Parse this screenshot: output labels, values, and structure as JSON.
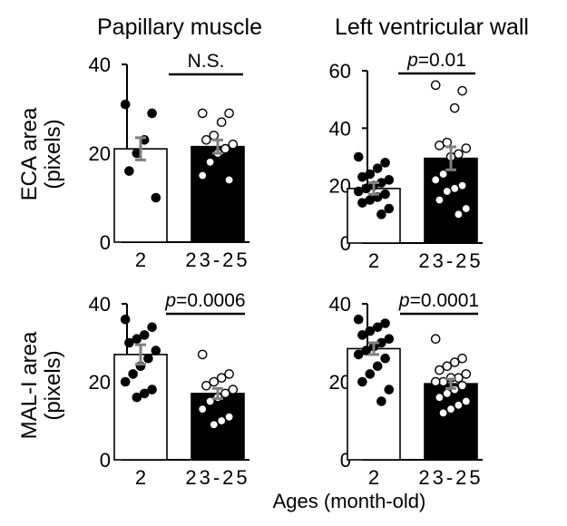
{
  "column_titles": [
    "Papillary muscle",
    "Left ventricular wall"
  ],
  "row_labels": [
    {
      "line1": "ECA area",
      "line2": "(pixels)"
    },
    {
      "line1": "MAL-I area",
      "line2": "(pixels)"
    }
  ],
  "xlabel": "Ages (month-old)",
  "chart_data": [
    {
      "type": "bar",
      "panel": "ECA area, Papillary muscle",
      "categories": [
        "2",
        "23-25"
      ],
      "ylim": [
        0,
        40
      ],
      "yticks": [
        0,
        20,
        40
      ],
      "significance": {
        "label_prefix": "",
        "label_value": "N.S."
      },
      "series": [
        {
          "group": "2",
          "mean": 21,
          "sem": 2.5,
          "bar_color": "#ffffff",
          "points": [
            31,
            29,
            23,
            20,
            16,
            10
          ]
        },
        {
          "group": "23-25",
          "mean": 21.5,
          "sem": 1.5,
          "bar_color": "#000000",
          "points": [
            29,
            29,
            27,
            24,
            23,
            22,
            21,
            20,
            18,
            15,
            14
          ]
        }
      ]
    },
    {
      "type": "bar",
      "panel": "ECA area, Left ventricular wall",
      "categories": [
        "2",
        "23-25"
      ],
      "ylim": [
        0,
        60
      ],
      "yticks": [
        0,
        20,
        40,
        60
      ],
      "significance": {
        "label_prefix": "p",
        "label_value": "=0.01"
      },
      "series": [
        {
          "group": "2",
          "mean": 19,
          "sem": 2,
          "bar_color": "#ffffff",
          "points": [
            30,
            28,
            26,
            24,
            23,
            22,
            21,
            20,
            19,
            18,
            17,
            16,
            15,
            14,
            12,
            10
          ]
        },
        {
          "group": "23-25",
          "mean": 29.5,
          "sem": 4,
          "bar_color": "#000000",
          "points": [
            55,
            53,
            47,
            35,
            34,
            33,
            31,
            30,
            24,
            22,
            20,
            19,
            18,
            15,
            12,
            10
          ]
        }
      ]
    },
    {
      "type": "bar",
      "panel": "MAL-I area, Papillary muscle",
      "categories": [
        "2",
        "23-25"
      ],
      "ylim": [
        0,
        40
      ],
      "yticks": [
        0,
        20,
        40
      ],
      "significance": {
        "label_prefix": "p",
        "label_value": "=0.0006"
      },
      "series": [
        {
          "group": "2",
          "mean": 27,
          "sem": 2.5,
          "bar_color": "#ffffff",
          "points": [
            36,
            34,
            32,
            31,
            30,
            28,
            26,
            24,
            22,
            20,
            18,
            17,
            16
          ]
        },
        {
          "group": "23-25",
          "mean": 17,
          "sem": 1.3,
          "bar_color": "#000000",
          "points": [
            27,
            22,
            21,
            20,
            19,
            18,
            17,
            16,
            15,
            13,
            11,
            10,
            9
          ]
        }
      ]
    },
    {
      "type": "bar",
      "panel": "MAL-I area, Left ventricular wall",
      "categories": [
        "2",
        "23-25"
      ],
      "ylim": [
        0,
        40
      ],
      "yticks": [
        0,
        20,
        40
      ],
      "significance": {
        "label_prefix": "p",
        "label_value": "=0.0001"
      },
      "series": [
        {
          "group": "2",
          "mean": 28.5,
          "sem": 1.5,
          "bar_color": "#ffffff",
          "points": [
            36,
            35,
            34,
            33,
            32,
            31,
            30,
            29,
            28,
            27,
            26,
            24,
            22,
            20,
            18,
            15
          ]
        },
        {
          "group": "23-25",
          "mean": 19.5,
          "sem": 1.2,
          "bar_color": "#000000",
          "points": [
            31,
            26,
            25,
            24,
            23,
            22,
            21,
            21,
            20,
            20,
            19,
            18,
            17,
            16,
            15,
            14,
            13,
            12
          ]
        }
      ]
    }
  ]
}
